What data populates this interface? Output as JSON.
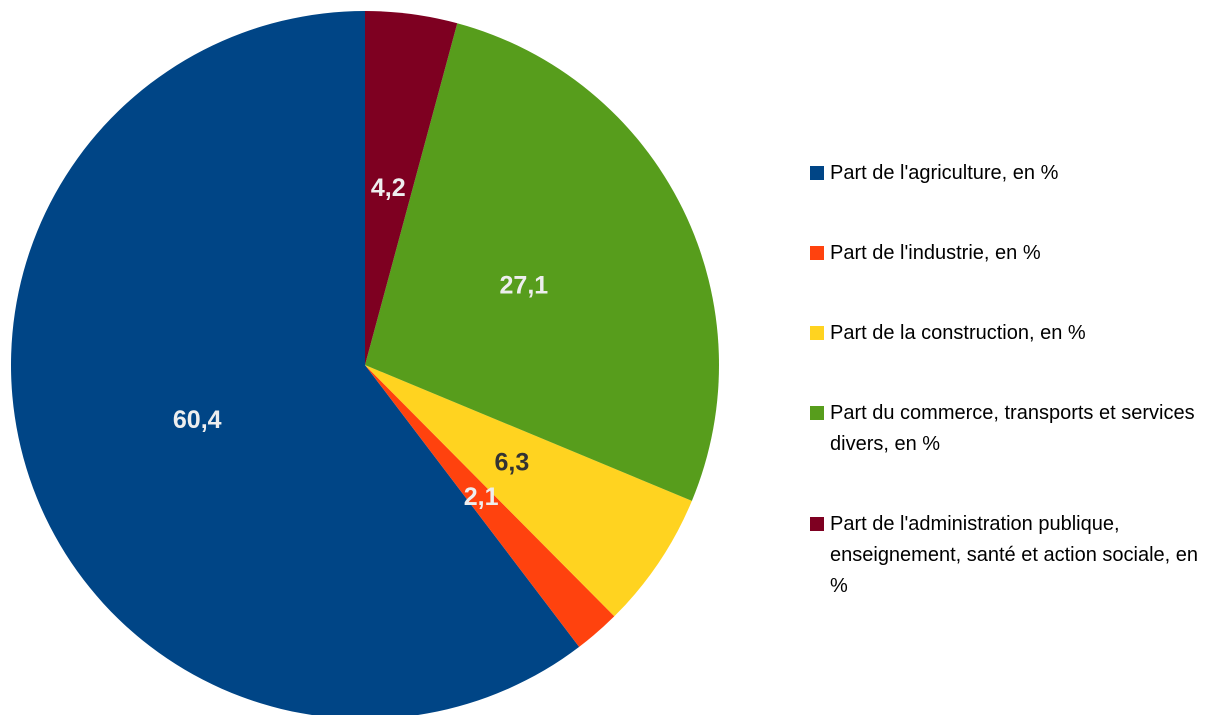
{
  "chart_data": {
    "type": "pie",
    "categories": [
      "Part de l'agriculture, en %",
      "Part de l'industrie, en %",
      "Part de la construction, en %",
      "Part du commerce, transports et services divers, en %",
      "Part de l'administration publique, enseignement, santé et action sociale, en %"
    ],
    "values": [
      60.4,
      2.1,
      6.3,
      27.1,
      4.2
    ],
    "value_labels": [
      "60,4",
      "2,1",
      "6,3",
      "27,1",
      "4,2"
    ],
    "colors": [
      "#004586",
      "#ff420e",
      "#ffd320",
      "#579d1c",
      "#7e0021"
    ],
    "legend": "right"
  }
}
